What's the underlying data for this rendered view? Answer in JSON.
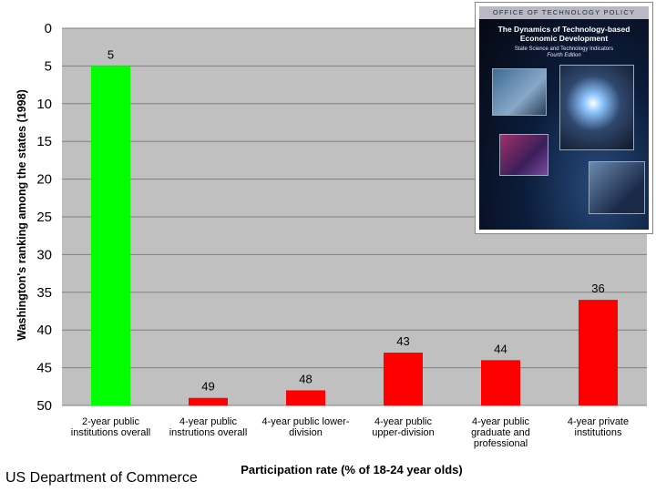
{
  "chart_data": {
    "type": "bar",
    "categories": [
      [
        "2-year public",
        "institutions overall"
      ],
      [
        "4-year public",
        "instrutions overall"
      ],
      [
        "4-year public lower-",
        "division"
      ],
      [
        "4-year public",
        "upper-division"
      ],
      [
        "4-year public",
        "graduate and",
        "professional"
      ],
      [
        "4-year private",
        "institutions"
      ]
    ],
    "values": [
      5,
      49,
      48,
      43,
      44,
      36
    ],
    "data_labels": [
      "5",
      "49",
      "48",
      "43",
      "44",
      "36"
    ],
    "bar_colors": [
      "#00ff00",
      "#ff0000",
      "#ff0000",
      "#ff0000",
      "#ff0000",
      "#ff0000"
    ],
    "ylabel": "Washington's ranking among the states (1998)",
    "xlabel": "Participation rate (% of 18-24 year olds)",
    "ylim": [
      0,
      50
    ],
    "y_inverted": true,
    "yticks": [
      0,
      5,
      10,
      15,
      20,
      25,
      30,
      35,
      40,
      45,
      50
    ],
    "grid": "horizontal",
    "plot_background": "#c0c0c0"
  },
  "source": "US Department of Commerce",
  "cover": {
    "band": "OFFICE OF TECHNOLOGY POLICY",
    "title": "The Dynamics of Technology-based Economic Development",
    "subtitle": "State Science and Technology Indicators",
    "edition": "Fourth Edition"
  }
}
